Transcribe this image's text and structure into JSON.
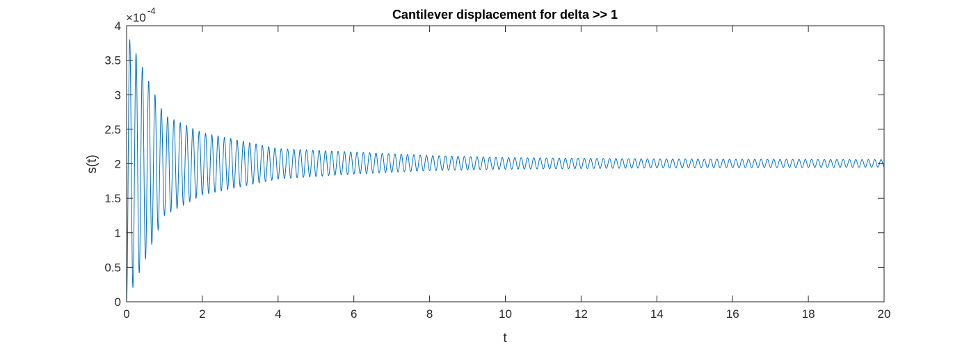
{
  "figure": {
    "title": "Cantilever displacement for delta >> 1"
  },
  "chart_data": {
    "type": "line",
    "title": "Cantilever displacement for delta >> 1",
    "xlabel": "t",
    "ylabel": "s(t)",
    "xlim": [
      0,
      20
    ],
    "ylim": [
      0,
      4
    ],
    "y_exponent_label": "×10",
    "y_exponent_power": "-4",
    "x_ticks": [
      "0",
      "2",
      "4",
      "6",
      "8",
      "10",
      "12",
      "14",
      "16",
      "18",
      "20"
    ],
    "y_ticks": [
      "0",
      "0.5",
      "1",
      "1.5",
      "2",
      "2.5",
      "3",
      "3.5",
      "4"
    ],
    "x_tick_values": [
      0,
      2,
      4,
      6,
      8,
      10,
      12,
      14,
      16,
      18,
      20
    ],
    "y_tick_values": [
      0,
      0.5,
      1,
      1.5,
      2,
      2.5,
      3,
      3.5,
      4
    ],
    "grid": false,
    "box": true,
    "line_color": "#0072BD",
    "axis_color": "#262626",
    "series": [
      {
        "color": "#0072BD",
        "equilibrium": 2.0,
        "initial_amplitude": 1.9,
        "peak_value_at_start": 3.9,
        "decay_envelope_samples": {
          "t": [
            0,
            1,
            2,
            4,
            6,
            8,
            10,
            14,
            20
          ],
          "upper": [
            3.9,
            2.7,
            2.45,
            2.22,
            2.17,
            2.12,
            2.09,
            2.07,
            2.06
          ],
          "lower": [
            0.0,
            1.25,
            1.55,
            1.78,
            1.85,
            1.9,
            1.92,
            1.94,
            1.95
          ]
        },
        "oscillation_period": 0.1667,
        "sampled": true
      }
    ]
  }
}
